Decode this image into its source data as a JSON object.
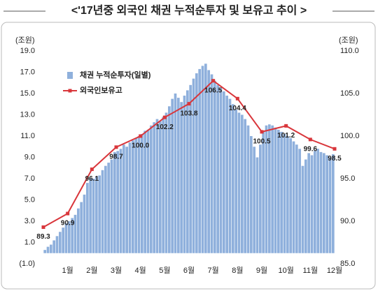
{
  "chart_data": {
    "type": "bar-line",
    "title": "<'17년중 외국인 채권 누적순투자 및 보유고 추이 >",
    "y_label": "(조원)",
    "y2_label": "(조원)",
    "xlim": [
      0,
      12
    ],
    "xticks": [
      {
        "value": 1,
        "label": "1월"
      },
      {
        "value": 2,
        "label": "2월"
      },
      {
        "value": 3,
        "label": "3월"
      },
      {
        "value": 4,
        "label": "4월"
      },
      {
        "value": 5,
        "label": "5월"
      },
      {
        "value": 6,
        "label": "6월"
      },
      {
        "value": 7,
        "label": "7월"
      },
      {
        "value": 8,
        "label": "8월"
      },
      {
        "value": 9,
        "label": "9월"
      },
      {
        "value": 10,
        "label": "10월"
      },
      {
        "value": 11,
        "label": "11월"
      },
      {
        "value": 12,
        "label": "12월"
      }
    ],
    "ylim": [
      -1,
      19
    ],
    "yticks": [
      {
        "value": -1,
        "label": "(1.0)"
      },
      {
        "value": 1,
        "label": "1.0"
      },
      {
        "value": 3,
        "label": "3.0"
      },
      {
        "value": 5,
        "label": "5.0"
      },
      {
        "value": 7,
        "label": "7.0"
      },
      {
        "value": 9,
        "label": "9.0"
      },
      {
        "value": 11,
        "label": "11.0"
      },
      {
        "value": 13,
        "label": "13.0"
      },
      {
        "value": 15,
        "label": "15.0"
      },
      {
        "value": 17,
        "label": "17.0"
      },
      {
        "value": 19,
        "label": "19.0"
      }
    ],
    "y2lim": [
      85,
      110
    ],
    "y2ticks": [
      {
        "value": 85,
        "label": "85.0"
      },
      {
        "value": 90,
        "label": "90.0"
      },
      {
        "value": 95,
        "label": "95.0"
      },
      {
        "value": 100,
        "label": "100.0"
      },
      {
        "value": 105,
        "label": "105.0"
      },
      {
        "value": 110,
        "label": "110.0"
      }
    ],
    "legend": "upper left",
    "series": [
      {
        "name": "채권 누적순투자(일별)",
        "type": "bar",
        "color": "#8fb0dc",
        "x": [
          0.125,
          0.25,
          0.375,
          0.5,
          0.625,
          0.75,
          0.875,
          1,
          1.125,
          1.25,
          1.375,
          1.5,
          1.625,
          1.75,
          1.875,
          2,
          2.125,
          2.25,
          2.375,
          2.5,
          2.625,
          2.75,
          2.875,
          3,
          3.125,
          3.25,
          3.375,
          3.5,
          3.625,
          3.75,
          3.875,
          4,
          4.125,
          4.25,
          4.375,
          4.5,
          4.625,
          4.75,
          4.875,
          5,
          5.125,
          5.25,
          5.375,
          5.5,
          5.625,
          5.75,
          5.875,
          6,
          6.125,
          6.25,
          6.375,
          6.5,
          6.625,
          6.75,
          6.875,
          7,
          7.125,
          7.25,
          7.375,
          7.5,
          7.625,
          7.75,
          7.875,
          8,
          8.125,
          8.25,
          8.375,
          8.5,
          8.625,
          8.75,
          8.875,
          9,
          9.125,
          9.25,
          9.375,
          9.5,
          9.625,
          9.75,
          9.875,
          10,
          10.125,
          10.25,
          10.375,
          10.5,
          10.625,
          10.75,
          10.875,
          11,
          11.125,
          11.25,
          11.375,
          11.5,
          11.625,
          11.75,
          11.875,
          12
        ],
        "values": [
          0.3,
          0.6,
          0.8,
          1.2,
          1.6,
          2.0,
          2.4,
          2.8,
          3.0,
          3.3,
          3.6,
          4.2,
          4.8,
          5.5,
          6.6,
          7.0,
          7.0,
          7.2,
          7.3,
          7.8,
          8.2,
          8.5,
          8.8,
          9.5,
          9.6,
          9.8,
          10.2,
          10.0,
          10.4,
          10.6,
          10.8,
          11.0,
          11.2,
          11.5,
          11.6,
          12.0,
          12.3,
          12.6,
          12.4,
          12.8,
          13.2,
          13.8,
          14.5,
          15.0,
          14.6,
          14.2,
          14.8,
          15.3,
          15.8,
          16.4,
          16.9,
          17.3,
          17.6,
          17.8,
          17.2,
          16.8,
          16.2,
          15.8,
          15.5,
          15.2,
          14.8,
          14.5,
          14.0,
          13.5,
          13.2,
          13.0,
          12.6,
          12.0,
          11.0,
          10.0,
          9.0,
          10.2,
          11.5,
          12.0,
          12.1,
          12.0,
          11.8,
          11.6,
          11.4,
          11.2,
          11.0,
          10.8,
          10.5,
          10.2,
          9.8,
          8.2,
          8.8,
          9.4,
          9.2,
          9.6,
          9.8,
          9.5,
          9.4,
          9.2,
          9.0,
          9.3
        ]
      },
      {
        "name": "외국인보유고",
        "type": "line",
        "axis": "y2",
        "color": "#d9363b",
        "x": [
          0,
          1,
          2,
          3,
          4,
          5,
          6,
          7,
          8,
          9,
          10,
          11,
          12
        ],
        "values": [
          89.3,
          90.9,
          96.1,
          98.7,
          100.0,
          102.2,
          103.8,
          106.5,
          104.4,
          100.5,
          101.2,
          99.6,
          98.5
        ],
        "value_labels": [
          "89.3",
          "90.9",
          "96.1",
          "98.7",
          "100.0",
          "102.2",
          "103.8",
          "106.5",
          "104.4",
          "100.5",
          "101.2",
          "99.6",
          "98.5"
        ]
      }
    ]
  }
}
